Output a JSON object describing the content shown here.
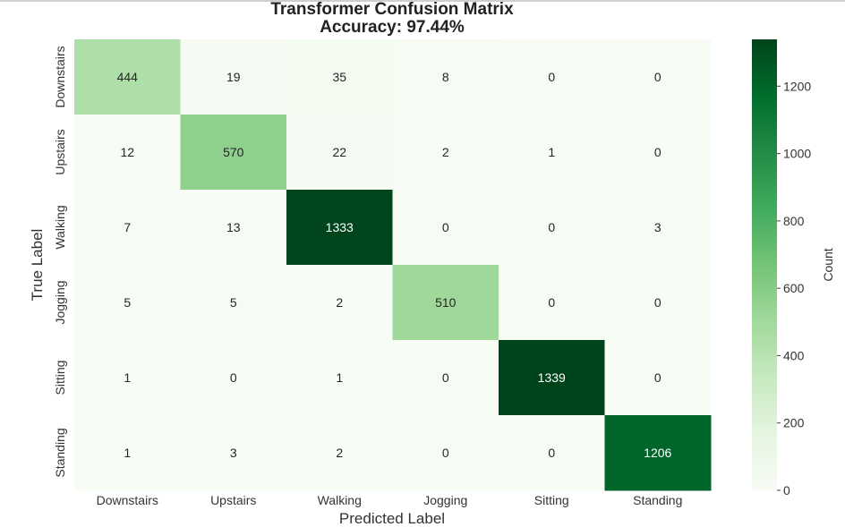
{
  "chart_data": {
    "type": "heatmap",
    "title": "Transformer Confusion Matrix",
    "subtitle": "Accuracy: 97.44%",
    "xlabel": "Predicted Label",
    "ylabel": "True Label",
    "x_categories": [
      "Downstairs",
      "Upstairs",
      "Walking",
      "Jogging",
      "Sitting",
      "Standing"
    ],
    "y_categories": [
      "Downstairs",
      "Upstairs",
      "Walking",
      "Jogging",
      "Sitting",
      "Standing"
    ],
    "values": [
      [
        444,
        19,
        35,
        8,
        0,
        0
      ],
      [
        12,
        570,
        22,
        2,
        1,
        0
      ],
      [
        7,
        13,
        1333,
        0,
        0,
        3
      ],
      [
        5,
        5,
        2,
        510,
        0,
        0
      ],
      [
        1,
        0,
        1,
        0,
        1339,
        0
      ],
      [
        1,
        3,
        2,
        0,
        0,
        1206
      ]
    ],
    "colorbar": {
      "label": "Count",
      "range": [
        0,
        1339
      ],
      "ticks": [
        0,
        200,
        400,
        600,
        800,
        1000,
        1200
      ]
    },
    "colormap": "Greens"
  }
}
